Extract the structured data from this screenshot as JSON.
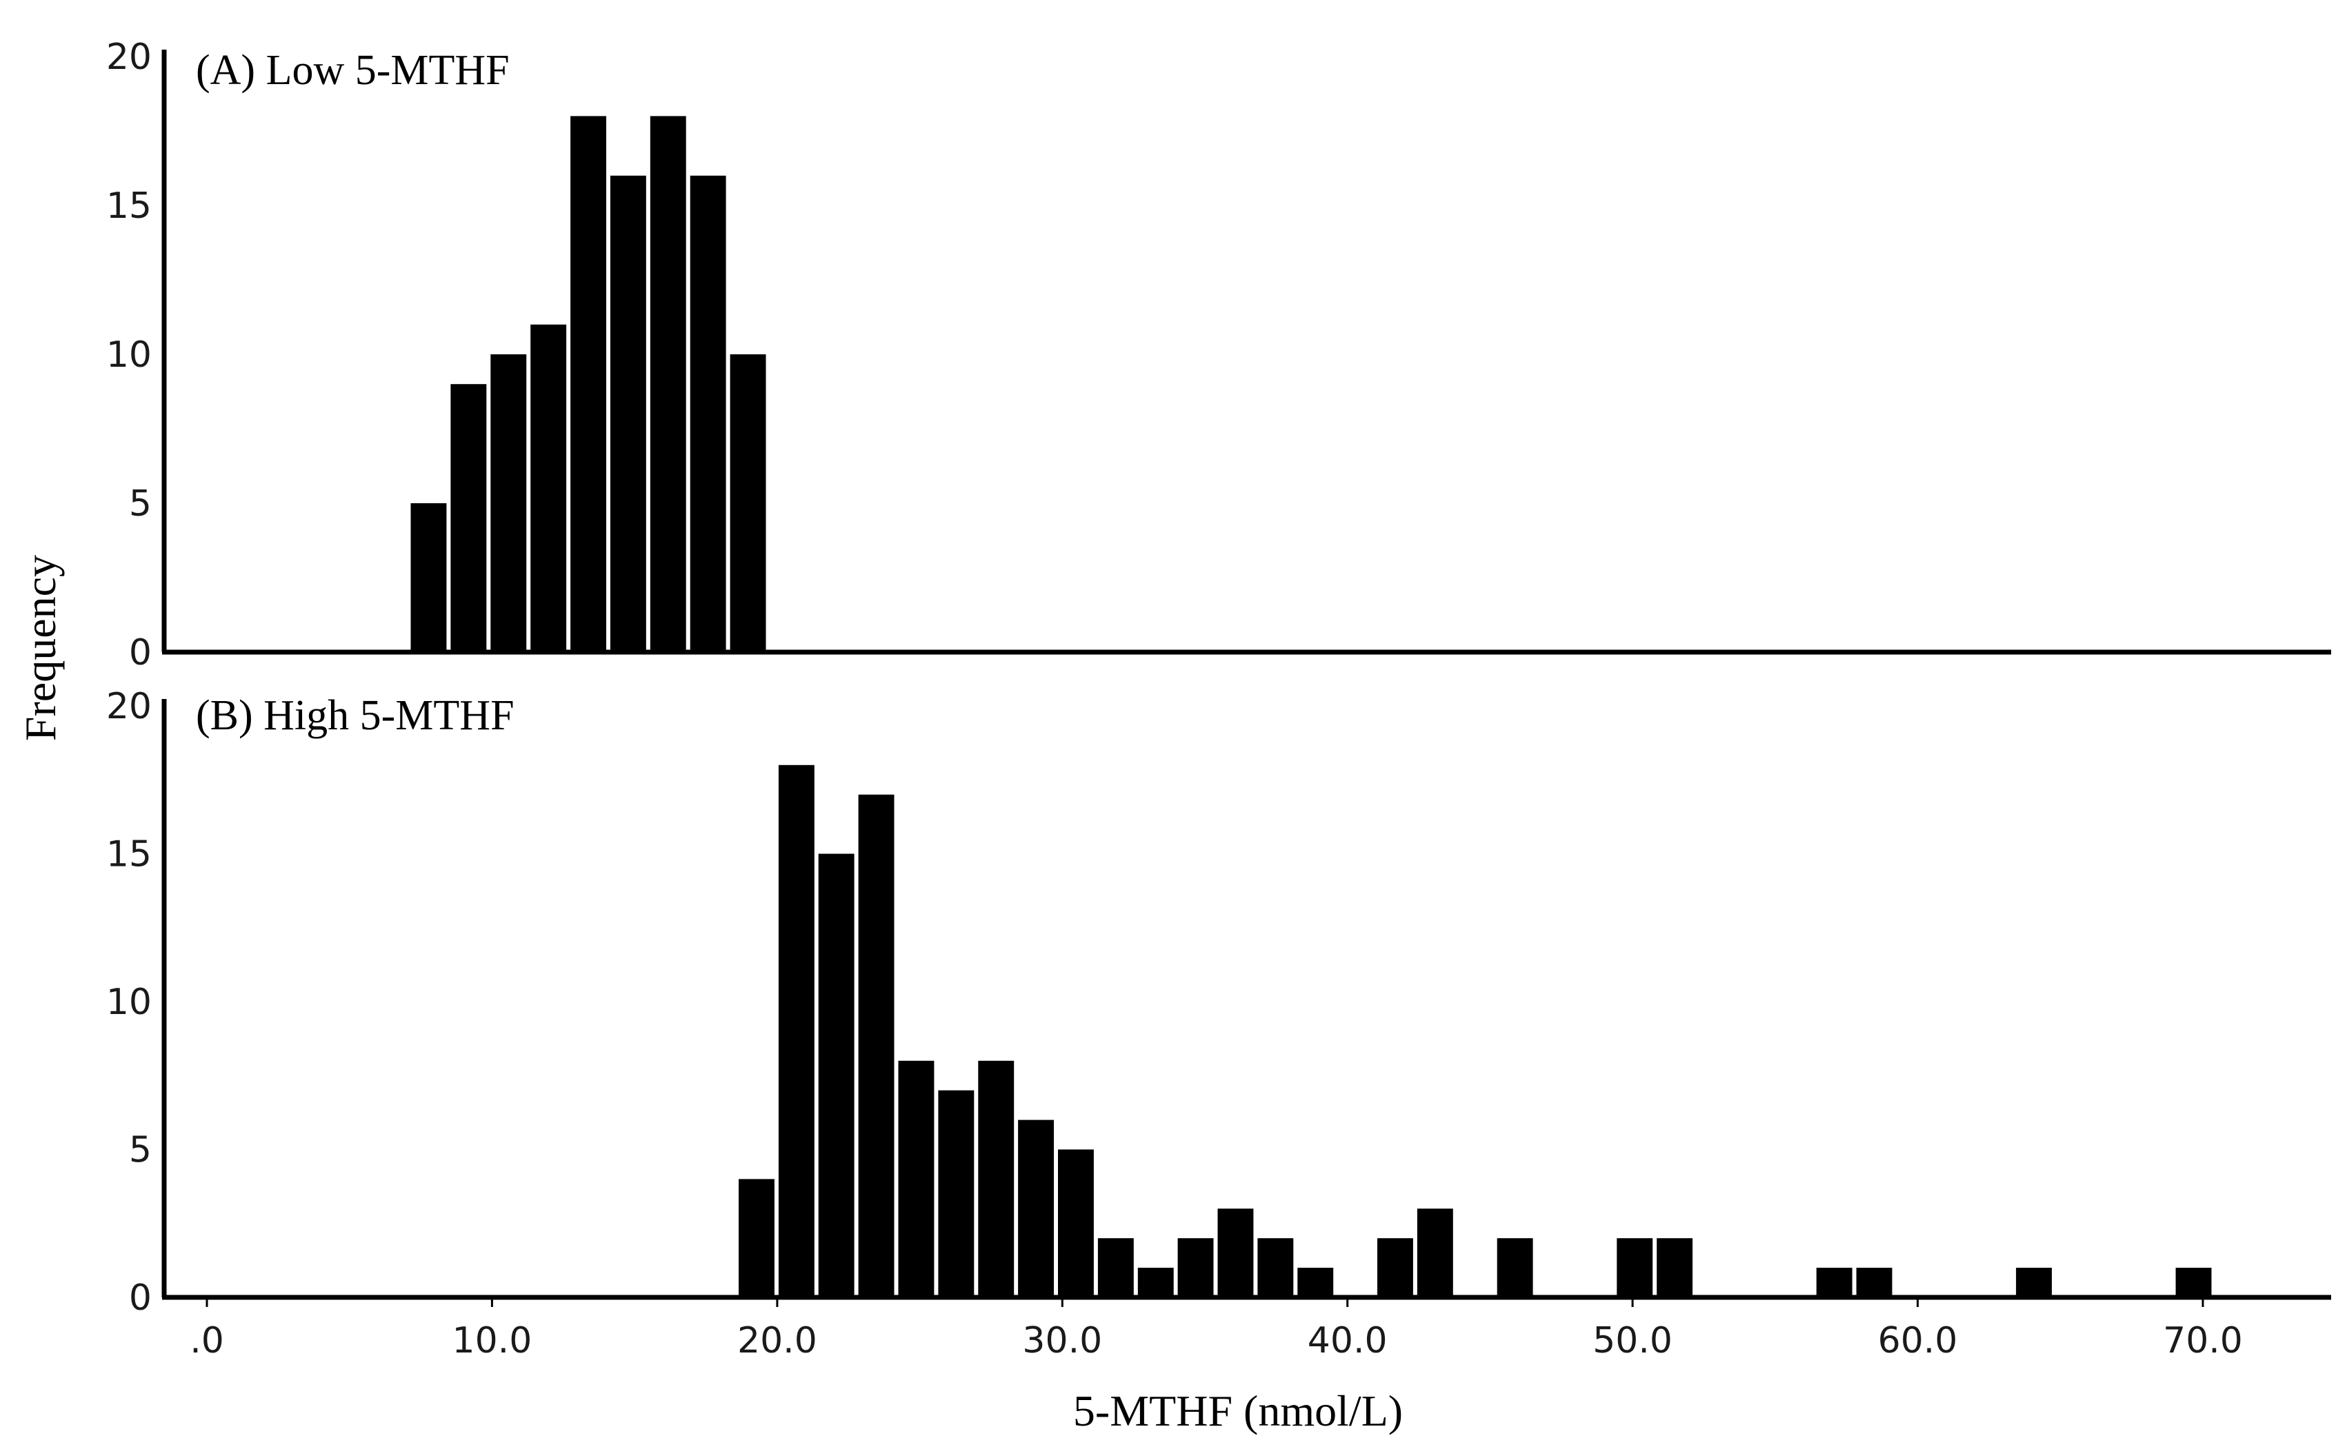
{
  "chart_data": {
    "type": "bar",
    "ylabel": "Frequency",
    "xlabel": "5-MTHF (nmol/L)",
    "xlim": [
      -1.5,
      74.5
    ],
    "x_ticks": [
      0,
      10,
      20,
      30,
      40,
      50,
      60,
      70
    ],
    "x_tick_labels": [
      ".0",
      "10.0",
      "20.0",
      "30.0",
      "40.0",
      "50.0",
      "60.0",
      "70.0"
    ],
    "bin_width": 1.4,
    "panels": [
      {
        "label": "(A) Low 5-MTHF",
        "ylim": [
          0,
          20
        ],
        "y_ticks": [
          0,
          5,
          10,
          15,
          20
        ],
        "bin_starts": [
          7.1,
          8.5,
          9.9,
          11.3,
          12.7,
          14.1,
          15.5,
          16.9,
          18.3
        ],
        "values": [
          5,
          9,
          10,
          11,
          18,
          16,
          18,
          16,
          10
        ]
      },
      {
        "label": "(B) High 5-MTHF",
        "ylim": [
          0,
          20
        ],
        "y_ticks": [
          0,
          5,
          10,
          15,
          20
        ],
        "bin_starts": [
          18.6,
          20.0,
          21.4,
          22.8,
          24.2,
          25.6,
          27.0,
          28.4,
          29.8,
          31.2,
          32.6,
          34.0,
          35.4,
          36.8,
          38.2,
          41.0,
          42.4,
          45.2,
          49.4,
          50.8,
          56.4,
          57.8,
          63.4,
          69.0
        ],
        "values": [
          4,
          18,
          15,
          17,
          8,
          7,
          8,
          6,
          5,
          2,
          1,
          2,
          3,
          2,
          1,
          2,
          3,
          2,
          2,
          2,
          1,
          1,
          1,
          1
        ]
      }
    ]
  }
}
